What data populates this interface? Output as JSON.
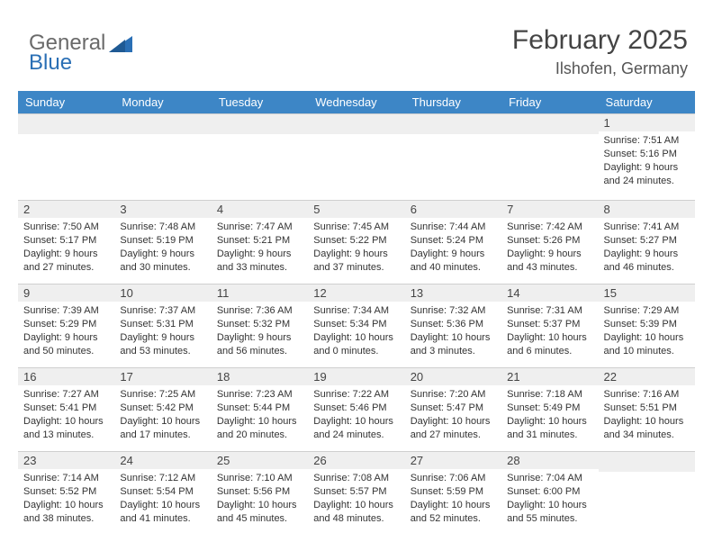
{
  "brand": {
    "part1": "General",
    "part2": "Blue",
    "triangle_color": "#2a6fb5"
  },
  "title": {
    "month": "February 2025",
    "location": "Ilshofen, Germany",
    "title_color": "#444444",
    "location_color": "#555555"
  },
  "colors": {
    "header_bg": "#3d86c6",
    "header_text": "#ffffff",
    "daynum_bg": "#efefef",
    "border": "#cfcfcf",
    "body_text": "#333333"
  },
  "day_headers": [
    "Sunday",
    "Monday",
    "Tuesday",
    "Wednesday",
    "Thursday",
    "Friday",
    "Saturday"
  ],
  "weeks": [
    [
      null,
      null,
      null,
      null,
      null,
      null,
      {
        "n": "1",
        "sr": "Sunrise: 7:51 AM",
        "ss": "Sunset: 5:16 PM",
        "dl": "Daylight: 9 hours and 24 minutes."
      }
    ],
    [
      {
        "n": "2",
        "sr": "Sunrise: 7:50 AM",
        "ss": "Sunset: 5:17 PM",
        "dl": "Daylight: 9 hours and 27 minutes."
      },
      {
        "n": "3",
        "sr": "Sunrise: 7:48 AM",
        "ss": "Sunset: 5:19 PM",
        "dl": "Daylight: 9 hours and 30 minutes."
      },
      {
        "n": "4",
        "sr": "Sunrise: 7:47 AM",
        "ss": "Sunset: 5:21 PM",
        "dl": "Daylight: 9 hours and 33 minutes."
      },
      {
        "n": "5",
        "sr": "Sunrise: 7:45 AM",
        "ss": "Sunset: 5:22 PM",
        "dl": "Daylight: 9 hours and 37 minutes."
      },
      {
        "n": "6",
        "sr": "Sunrise: 7:44 AM",
        "ss": "Sunset: 5:24 PM",
        "dl": "Daylight: 9 hours and 40 minutes."
      },
      {
        "n": "7",
        "sr": "Sunrise: 7:42 AM",
        "ss": "Sunset: 5:26 PM",
        "dl": "Daylight: 9 hours and 43 minutes."
      },
      {
        "n": "8",
        "sr": "Sunrise: 7:41 AM",
        "ss": "Sunset: 5:27 PM",
        "dl": "Daylight: 9 hours and 46 minutes."
      }
    ],
    [
      {
        "n": "9",
        "sr": "Sunrise: 7:39 AM",
        "ss": "Sunset: 5:29 PM",
        "dl": "Daylight: 9 hours and 50 minutes."
      },
      {
        "n": "10",
        "sr": "Sunrise: 7:37 AM",
        "ss": "Sunset: 5:31 PM",
        "dl": "Daylight: 9 hours and 53 minutes."
      },
      {
        "n": "11",
        "sr": "Sunrise: 7:36 AM",
        "ss": "Sunset: 5:32 PM",
        "dl": "Daylight: 9 hours and 56 minutes."
      },
      {
        "n": "12",
        "sr": "Sunrise: 7:34 AM",
        "ss": "Sunset: 5:34 PM",
        "dl": "Daylight: 10 hours and 0 minutes."
      },
      {
        "n": "13",
        "sr": "Sunrise: 7:32 AM",
        "ss": "Sunset: 5:36 PM",
        "dl": "Daylight: 10 hours and 3 minutes."
      },
      {
        "n": "14",
        "sr": "Sunrise: 7:31 AM",
        "ss": "Sunset: 5:37 PM",
        "dl": "Daylight: 10 hours and 6 minutes."
      },
      {
        "n": "15",
        "sr": "Sunrise: 7:29 AM",
        "ss": "Sunset: 5:39 PM",
        "dl": "Daylight: 10 hours and 10 minutes."
      }
    ],
    [
      {
        "n": "16",
        "sr": "Sunrise: 7:27 AM",
        "ss": "Sunset: 5:41 PM",
        "dl": "Daylight: 10 hours and 13 minutes."
      },
      {
        "n": "17",
        "sr": "Sunrise: 7:25 AM",
        "ss": "Sunset: 5:42 PM",
        "dl": "Daylight: 10 hours and 17 minutes."
      },
      {
        "n": "18",
        "sr": "Sunrise: 7:23 AM",
        "ss": "Sunset: 5:44 PM",
        "dl": "Daylight: 10 hours and 20 minutes."
      },
      {
        "n": "19",
        "sr": "Sunrise: 7:22 AM",
        "ss": "Sunset: 5:46 PM",
        "dl": "Daylight: 10 hours and 24 minutes."
      },
      {
        "n": "20",
        "sr": "Sunrise: 7:20 AM",
        "ss": "Sunset: 5:47 PM",
        "dl": "Daylight: 10 hours and 27 minutes."
      },
      {
        "n": "21",
        "sr": "Sunrise: 7:18 AM",
        "ss": "Sunset: 5:49 PM",
        "dl": "Daylight: 10 hours and 31 minutes."
      },
      {
        "n": "22",
        "sr": "Sunrise: 7:16 AM",
        "ss": "Sunset: 5:51 PM",
        "dl": "Daylight: 10 hours and 34 minutes."
      }
    ],
    [
      {
        "n": "23",
        "sr": "Sunrise: 7:14 AM",
        "ss": "Sunset: 5:52 PM",
        "dl": "Daylight: 10 hours and 38 minutes."
      },
      {
        "n": "24",
        "sr": "Sunrise: 7:12 AM",
        "ss": "Sunset: 5:54 PM",
        "dl": "Daylight: 10 hours and 41 minutes."
      },
      {
        "n": "25",
        "sr": "Sunrise: 7:10 AM",
        "ss": "Sunset: 5:56 PM",
        "dl": "Daylight: 10 hours and 45 minutes."
      },
      {
        "n": "26",
        "sr": "Sunrise: 7:08 AM",
        "ss": "Sunset: 5:57 PM",
        "dl": "Daylight: 10 hours and 48 minutes."
      },
      {
        "n": "27",
        "sr": "Sunrise: 7:06 AM",
        "ss": "Sunset: 5:59 PM",
        "dl": "Daylight: 10 hours and 52 minutes."
      },
      {
        "n": "28",
        "sr": "Sunrise: 7:04 AM",
        "ss": "Sunset: 6:00 PM",
        "dl": "Daylight: 10 hours and 55 minutes."
      },
      null
    ]
  ]
}
